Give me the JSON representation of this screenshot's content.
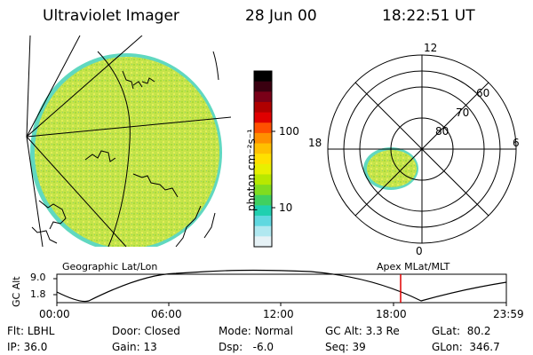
{
  "header": {
    "instrument": "Ultraviolet Imager",
    "date": "28 Jun 00",
    "time": "18:22:51 UT"
  },
  "colorbar": {
    "label": "photon cm⁻²s⁻¹",
    "ticks": [
      "100",
      "10"
    ],
    "colors": [
      "#000000",
      "#3a0010",
      "#7a0018",
      "#b00000",
      "#e00000",
      "#ff5000",
      "#ff9000",
      "#ffc000",
      "#ffe000",
      "#e8f000",
      "#b8e800",
      "#80dc20",
      "#40d060",
      "#20d0b0",
      "#60d8e0",
      "#b0e8f0",
      "#e6f2f6"
    ]
  },
  "geo_panel": {
    "label": "Geographic Lat/Lon"
  },
  "polar_panel": {
    "label": "Apex  MLat/MLT",
    "mlt_labels": [
      "12",
      "18",
      "6",
      "0"
    ],
    "lat_labels": [
      "60",
      "70",
      "80"
    ]
  },
  "altitude_strip": {
    "ylabel": "GC Alt",
    "yticks": [
      "9.0",
      "1.8"
    ],
    "xticks": [
      "00:00",
      "06:00",
      "12:00",
      "18:00",
      "23:59"
    ],
    "marker_color": "#e00000"
  },
  "meta": {
    "flt_label": "Flt:",
    "flt_value": "LBHL",
    "ip_label": "IP:",
    "ip_value": "36.0",
    "door_label": "Door:",
    "door_value": "Closed",
    "gain_label": "Gain:",
    "gain_value": "13",
    "mode_label": "Mode:",
    "mode_value": "Normal",
    "dsp_label": "Dsp:",
    "dsp_value": "-6.0",
    "gcalt_label": "GC Alt:",
    "gcalt_value": "3.3 Re",
    "seq_label": "Seq:",
    "seq_value": "39",
    "glat_label": "GLat:",
    "glat_value": "80.2",
    "glon_label": "GLon:",
    "glon_value": "346.7"
  }
}
